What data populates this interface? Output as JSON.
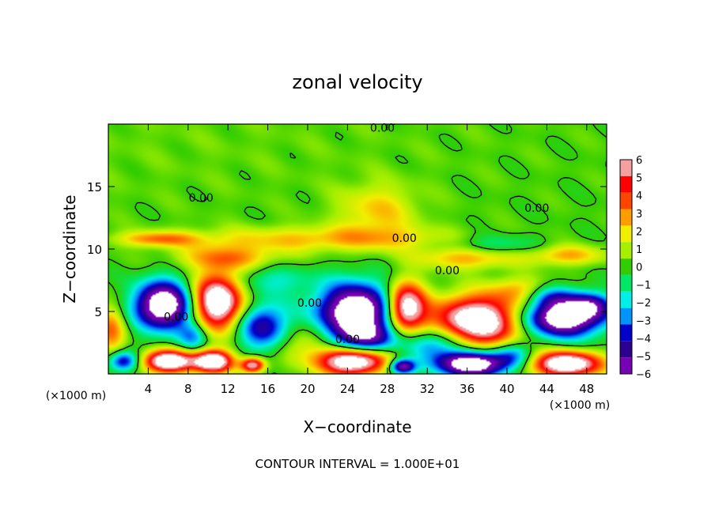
{
  "chart_data": {
    "type": "heatmap",
    "title": "zonal velocity",
    "xlabel": "X−coordinate",
    "ylabel": "Z−coordinate",
    "x_unit_left": "(×1000 m)",
    "x_unit_right": "(×1000 m)",
    "xlim": [
      0,
      50
    ],
    "ylim": [
      0,
      20
    ],
    "x_ticks": [
      4,
      8,
      12,
      16,
      20,
      24,
      28,
      32,
      36,
      40,
      44,
      48
    ],
    "y_ticks": [
      5,
      10,
      15
    ],
    "footer": "CONTOUR INTERVAL = 1.000E+01",
    "colorbar": {
      "levels": [
        6,
        5,
        4,
        3,
        2,
        1,
        0,
        -1,
        -2,
        -3,
        -4,
        -5,
        -6
      ],
      "colors": [
        "#f4a0a0",
        "#ff0000",
        "#ff4500",
        "#ff9d00",
        "#f2ee00",
        "#a6ef00",
        "#31cd00",
        "#00e666",
        "#00efe6",
        "#0094ff",
        "#0000cd",
        "#2b0090",
        "#7800b4"
      ]
    },
    "contour_labels": [
      {
        "text": "0.00",
        "x": 27.5,
        "z": 19.7
      },
      {
        "text": "0.00",
        "x": 9.3,
        "z": 14.1
      },
      {
        "text": "0.00",
        "x": 43.0,
        "z": 13.3
      },
      {
        "text": "0.00",
        "x": 29.7,
        "z": 10.9
      },
      {
        "text": "0.00",
        "x": 34.0,
        "z": 8.3
      },
      {
        "text": "0.00",
        "x": 20.2,
        "z": 5.7
      },
      {
        "text": "0.00",
        "x": 6.8,
        "z": 4.6
      },
      {
        "text": "0.00",
        "x": 24.0,
        "z": 2.8
      }
    ],
    "blobs": [
      {
        "x": 0.0,
        "z": 19.0,
        "rx": 50,
        "rz": 7.5,
        "v": 0.4
      },
      {
        "x": 27.0,
        "z": 13.0,
        "rx": 4.0,
        "rz": 2.2,
        "v": 2.3
      },
      {
        "x": 22.0,
        "z": 10.8,
        "rx": 14.0,
        "rz": 1.0,
        "v": 2.5
      },
      {
        "x": 5.0,
        "z": 10.8,
        "rx": 4.0,
        "rz": 0.6,
        "v": 3.0
      },
      {
        "x": 12.0,
        "z": 9.3,
        "rx": 5.0,
        "rz": 1.0,
        "v": 3.0
      },
      {
        "x": 36.0,
        "z": 9.3,
        "rx": 5.0,
        "rz": 0.9,
        "v": 3.0
      },
      {
        "x": 46.0,
        "z": 9.5,
        "rx": 4.0,
        "rz": 0.8,
        "v": 2.8
      },
      {
        "x": 38.5,
        "z": 10.3,
        "rx": 5.0,
        "rz": 0.9,
        "v": -2.0
      },
      {
        "x": 5.5,
        "z": 5.5,
        "rx": 2.8,
        "rz": 1.9,
        "v": -9.0
      },
      {
        "x": 11.0,
        "z": 5.8,
        "rx": 2.5,
        "rz": 2.2,
        "v": 9.0
      },
      {
        "x": 15.5,
        "z": 3.8,
        "rx": 2.5,
        "rz": 1.8,
        "v": -5.0
      },
      {
        "x": 25.0,
        "z": 5.0,
        "rx": 4.0,
        "rz": 2.2,
        "v": -9.0
      },
      {
        "x": 29.8,
        "z": 5.3,
        "rx": 2.0,
        "rz": 2.0,
        "v": 9.0
      },
      {
        "x": 37.0,
        "z": 4.2,
        "rx": 4.5,
        "rz": 2.0,
        "v": 9.0
      },
      {
        "x": 45.5,
        "z": 4.5,
        "rx": 4.0,
        "rz": 1.5,
        "v": -9.0
      },
      {
        "x": 44.0,
        "z": 6.2,
        "rx": 3.0,
        "rz": 0.9,
        "v": -3.0
      },
      {
        "x": 26.0,
        "z": 2.8,
        "rx": 3.0,
        "rz": 1.2,
        "v": -4.0
      },
      {
        "x": 33.0,
        "z": 2.5,
        "rx": 3.0,
        "rz": 1.3,
        "v": -4.0
      },
      {
        "x": 6.0,
        "z": 1.0,
        "rx": 2.5,
        "rz": 0.9,
        "v": 9.0
      },
      {
        "x": 10.5,
        "z": 1.0,
        "rx": 2.0,
        "rz": 0.9,
        "v": 9.0
      },
      {
        "x": 14.5,
        "z": 0.7,
        "rx": 1.2,
        "rz": 0.6,
        "v": 7.0
      },
      {
        "x": 24.5,
        "z": 1.0,
        "rx": 3.5,
        "rz": 1.1,
        "v": 9.0
      },
      {
        "x": 29.5,
        "z": 0.6,
        "rx": 1.3,
        "rz": 0.6,
        "v": -7.0
      },
      {
        "x": 36.5,
        "z": 0.8,
        "rx": 3.5,
        "rz": 1.0,
        "v": -9.0
      },
      {
        "x": 46.0,
        "z": 0.8,
        "rx": 3.5,
        "rz": 1.0,
        "v": 9.0
      },
      {
        "x": 40.5,
        "z": 1.5,
        "rx": 2.0,
        "rz": 1.0,
        "v": -3.0
      },
      {
        "x": 0.3,
        "z": 3.5,
        "rx": 1.5,
        "rz": 2.0,
        "v": 3.5
      },
      {
        "x": 1.5,
        "z": 1.0,
        "rx": 1.5,
        "rz": 0.8,
        "v": -5.0
      },
      {
        "x": 8.5,
        "z": 3.0,
        "rx": 1.5,
        "rz": 1.2,
        "v": -3.0
      },
      {
        "x": 19.5,
        "z": 2.5,
        "rx": 2.5,
        "rz": 1.5,
        "v": 2.0
      },
      {
        "x": 48.5,
        "z": 5.5,
        "rx": 2.0,
        "rz": 1.0,
        "v": -4.0
      },
      {
        "x": 41.5,
        "z": 6.5,
        "rx": 3.0,
        "rz": 1.2,
        "v": 3.0
      },
      {
        "x": 16.5,
        "z": 7.5,
        "rx": 4.0,
        "rz": 1.2,
        "v": -1.8
      }
    ]
  }
}
